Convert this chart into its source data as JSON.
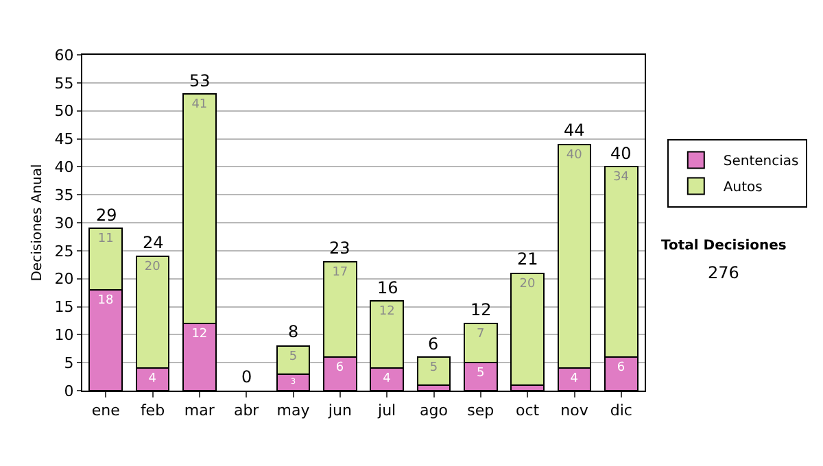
{
  "chart_data": {
    "type": "bar",
    "stacked": true,
    "ylabel": "Decisiones Anual",
    "categories": [
      "ene",
      "feb",
      "mar",
      "abr",
      "may",
      "jun",
      "jul",
      "ago",
      "sep",
      "oct",
      "nov",
      "dic"
    ],
    "series": [
      {
        "name": "Sentencias",
        "color": "#e07cc4",
        "values": [
          18,
          4,
          12,
          0,
          3,
          6,
          4,
          1,
          5,
          1,
          4,
          6
        ],
        "value_labels": [
          "18",
          "4",
          "12",
          null,
          "3",
          "6",
          "4",
          null,
          "5",
          null,
          "4",
          "6"
        ]
      },
      {
        "name": "Autos",
        "color": "#d4ea98",
        "values": [
          11,
          20,
          41,
          0,
          5,
          17,
          12,
          5,
          7,
          20,
          40,
          34
        ],
        "value_labels": [
          "11",
          "20",
          "41",
          null,
          "5",
          "17",
          "12",
          "5",
          "7",
          "20",
          "40",
          "34"
        ]
      }
    ],
    "totals": [
      "29",
      "24",
      "53",
      "0",
      "8",
      "23",
      "16",
      "6",
      "12",
      "21",
      "44",
      "40"
    ],
    "ylim": [
      0,
      60
    ],
    "yticks": [
      0,
      5,
      10,
      15,
      20,
      25,
      30,
      35,
      40,
      45,
      50,
      55,
      60
    ],
    "grid": "y",
    "legend": "right",
    "annotations": [
      "Total Decisiones",
      "276"
    ]
  }
}
